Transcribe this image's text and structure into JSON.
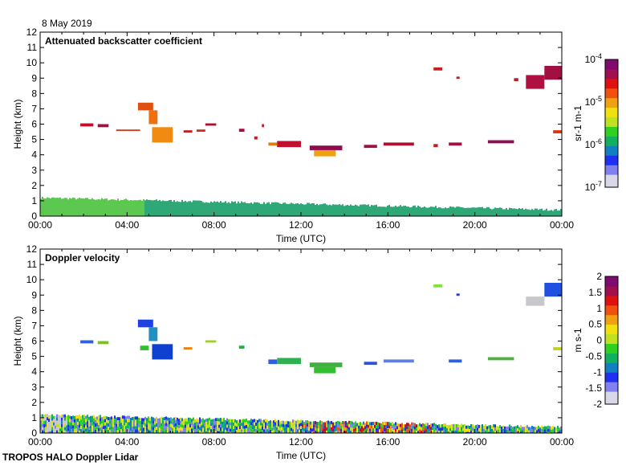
{
  "date": "8 May 2019",
  "footer": "TROPOS HALO Doppler Lidar",
  "chart_data": [
    {
      "type": "heatmap",
      "title": "Attenuated backscatter coefficient",
      "xlabel": "Time (UTC)",
      "ylabel": "Height (km)",
      "xlim": [
        0,
        24
      ],
      "ylim": [
        0,
        12
      ],
      "xtick_labels": [
        "00:00",
        "04:00",
        "08:00",
        "12:00",
        "16:00",
        "20:00",
        "00:00"
      ],
      "ytick_labels": [
        "0",
        "1",
        "2",
        "3",
        "4",
        "5",
        "6",
        "7",
        "8",
        "9",
        "10",
        "11",
        "12"
      ],
      "colorbar": {
        "label": "sr-1 m-1",
        "scale": "log",
        "range": [
          1e-07,
          0.0001
        ],
        "tick_labels": [
          "10-7",
          "10-6",
          "10-5",
          "10-4"
        ]
      },
      "boundary_layer": {
        "top_km_start": 1.2,
        "top_km_end": 0.4,
        "color": "#2fa878"
      },
      "features": [
        [
          1.85,
          2.45,
          5.85,
          6.05,
          "#c0102a"
        ],
        [
          2.65,
          3.15,
          5.8,
          6.0,
          "#a01040"
        ],
        [
          3.5,
          4.6,
          5.55,
          5.65,
          "#d04020"
        ],
        [
          4.5,
          5.2,
          6.9,
          7.4,
          "#e05010"
        ],
        [
          5.0,
          5.4,
          6.0,
          6.9,
          "#f07010"
        ],
        [
          5.15,
          6.1,
          4.8,
          5.8,
          "#f08a10"
        ],
        [
          6.6,
          7.0,
          5.45,
          5.6,
          "#c02020"
        ],
        [
          7.2,
          7.6,
          5.5,
          5.65,
          "#d03020"
        ],
        [
          7.6,
          8.1,
          5.9,
          6.05,
          "#b01030"
        ],
        [
          9.15,
          9.4,
          5.5,
          5.7,
          "#a01040"
        ],
        [
          9.85,
          10.0,
          5.0,
          5.2,
          "#c02020"
        ],
        [
          10.2,
          10.3,
          5.8,
          6.0,
          "#c02020"
        ],
        [
          10.5,
          10.9,
          4.6,
          4.8,
          "#e08010"
        ],
        [
          10.9,
          12.0,
          4.5,
          4.9,
          "#c01030"
        ],
        [
          12.4,
          13.9,
          4.3,
          4.6,
          "#900a50"
        ],
        [
          12.6,
          13.6,
          3.9,
          4.3,
          "#f0a010"
        ],
        [
          14.9,
          15.5,
          4.45,
          4.65,
          "#a01040"
        ],
        [
          15.8,
          17.2,
          4.6,
          4.8,
          "#b01030"
        ],
        [
          18.1,
          18.3,
          4.5,
          4.7,
          "#c02020"
        ],
        [
          18.8,
          19.4,
          4.6,
          4.8,
          "#a01040"
        ],
        [
          20.6,
          21.8,
          4.75,
          4.95,
          "#900a50"
        ],
        [
          18.1,
          18.5,
          9.5,
          9.7,
          "#c02020"
        ],
        [
          19.15,
          19.3,
          8.95,
          9.1,
          "#c02020"
        ],
        [
          21.8,
          22.0,
          8.8,
          9.0,
          "#c02020"
        ],
        [
          22.35,
          23.2,
          8.3,
          9.2,
          "#b01040"
        ],
        [
          23.2,
          24.0,
          8.9,
          9.8,
          "#a01040"
        ],
        [
          23.6,
          24.0,
          5.4,
          5.6,
          "#e03010"
        ]
      ]
    },
    {
      "type": "heatmap",
      "title": "Doppler velocity",
      "xlabel": "Time (UTC)",
      "ylabel": "Height (km)",
      "xlim": [
        0,
        24
      ],
      "ylim": [
        0,
        12
      ],
      "xtick_labels": [
        "00:00",
        "04:00",
        "08:00",
        "12:00",
        "16:00",
        "20:00",
        "00:00"
      ],
      "ytick_labels": [
        "0",
        "1",
        "2",
        "3",
        "4",
        "5",
        "6",
        "7",
        "8",
        "9",
        "10",
        "11",
        "12"
      ],
      "colorbar": {
        "label": "m s-1",
        "scale": "linear",
        "range": [
          -2,
          2
        ],
        "tick_labels": [
          "-2",
          "-1.5",
          "-1",
          "-0.5",
          "0",
          "0.5",
          "1",
          "1.5",
          "2"
        ]
      },
      "boundary_layer": {
        "top_km_start": 1.2,
        "top_km_end": 0.4,
        "color": "mixed"
      },
      "features": [
        [
          1.85,
          2.45,
          5.85,
          6.05,
          "#3060e0"
        ],
        [
          2.65,
          3.15,
          5.8,
          6.0,
          "#80c020"
        ],
        [
          4.5,
          5.2,
          6.9,
          7.4,
          "#2040e0"
        ],
        [
          5.0,
          5.4,
          6.0,
          6.9,
          "#2090c0"
        ],
        [
          5.15,
          6.1,
          4.8,
          5.8,
          "#1040d0"
        ],
        [
          4.6,
          5.0,
          5.4,
          5.7,
          "#30c030"
        ],
        [
          6.6,
          7.0,
          5.45,
          5.6,
          "#f08010"
        ],
        [
          7.6,
          8.1,
          5.9,
          6.05,
          "#a0d020"
        ],
        [
          9.15,
          9.4,
          5.5,
          5.7,
          "#20b040"
        ],
        [
          10.5,
          10.9,
          4.5,
          4.8,
          "#3060e0"
        ],
        [
          10.9,
          12.0,
          4.5,
          4.9,
          "#30b050"
        ],
        [
          12.4,
          13.9,
          4.3,
          4.6,
          "#40b040"
        ],
        [
          12.6,
          13.6,
          3.9,
          4.3,
          "#30c030"
        ],
        [
          14.9,
          15.5,
          4.45,
          4.65,
          "#3050e0"
        ],
        [
          15.8,
          17.2,
          4.6,
          4.8,
          "#6080e0"
        ],
        [
          18.8,
          19.4,
          4.6,
          4.8,
          "#3060e0"
        ],
        [
          20.6,
          21.8,
          4.75,
          4.95,
          "#50b040"
        ],
        [
          18.1,
          18.5,
          9.5,
          9.7,
          "#80e040"
        ],
        [
          19.15,
          19.3,
          8.95,
          9.1,
          "#2040e0"
        ],
        [
          22.35,
          23.2,
          8.3,
          8.9,
          "#c8c8cc"
        ],
        [
          23.2,
          24.0,
          8.9,
          9.8,
          "#2050e0"
        ],
        [
          23.6,
          24.0,
          5.4,
          5.6,
          "#c0d020"
        ]
      ]
    }
  ]
}
